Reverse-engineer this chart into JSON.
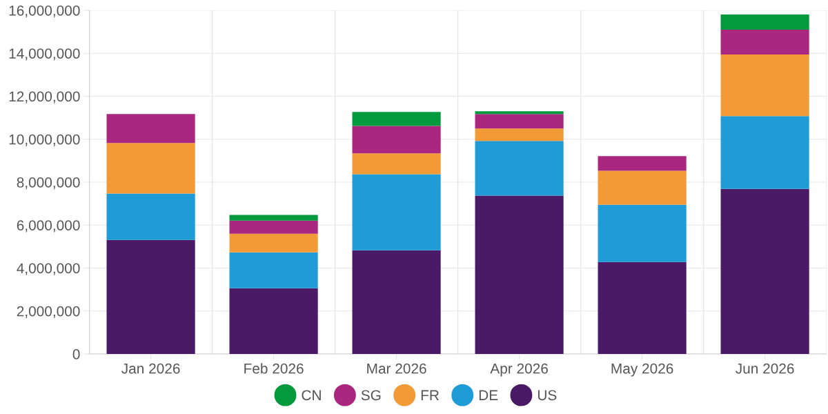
{
  "chart_data": {
    "type": "bar",
    "stacked": true,
    "categories": [
      "Jan 2026",
      "Feb 2026",
      "Mar 2026",
      "Apr 2026",
      "May 2026",
      "Jun 2026"
    ],
    "series": [
      {
        "name": "US",
        "color": "#4a1a66",
        "values": [
          5310000,
          3060000,
          4830000,
          7370000,
          4280000,
          7690000
        ]
      },
      {
        "name": "DE",
        "color": "#1f9cd6",
        "values": [
          2160000,
          1670000,
          3540000,
          2550000,
          2670000,
          3390000
        ]
      },
      {
        "name": "FR",
        "color": "#f29b36",
        "values": [
          2350000,
          870000,
          970000,
          580000,
          1580000,
          2860000
        ]
      },
      {
        "name": "SG",
        "color": "#aa2780",
        "values": [
          1350000,
          610000,
          1280000,
          670000,
          680000,
          1160000
        ]
      },
      {
        "name": "CN",
        "color": "#029a3c",
        "values": [
          null,
          260000,
          650000,
          130000,
          null,
          710000
        ]
      }
    ],
    "ylim": [
      0,
      16000000
    ],
    "yticks": [
      {
        "value": 0,
        "label": "0"
      },
      {
        "value": 2000000,
        "label": "2,000,000"
      },
      {
        "value": 4000000,
        "label": "4,000,000"
      },
      {
        "value": 6000000,
        "label": "6,000,000"
      },
      {
        "value": 8000000,
        "label": "8,000,000"
      },
      {
        "value": 10000000,
        "label": "10,000,000"
      },
      {
        "value": 12000000,
        "label": "12,000,000"
      },
      {
        "value": 14000000,
        "label": "14,000,000"
      },
      {
        "value": 16000000,
        "label": "16,000,000"
      }
    ],
    "grid": true,
    "legend": "bottom"
  }
}
